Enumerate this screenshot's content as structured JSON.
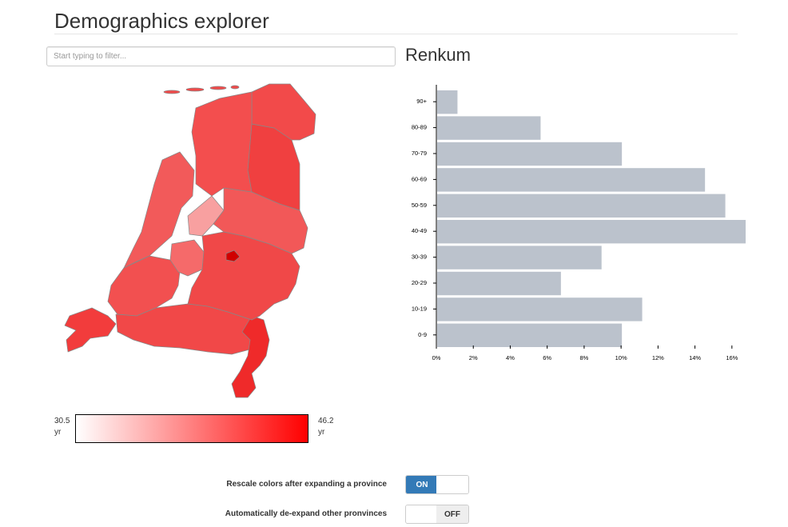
{
  "page": {
    "title": "Demographics explorer"
  },
  "filter": {
    "placeholder": "Start typing to filter..."
  },
  "selected_region": {
    "name": "Renkum"
  },
  "legend": {
    "min_value": "30.5",
    "max_value": "46.2",
    "unit": "yr",
    "low_color": "#ffffff",
    "high_color": "#ff0000"
  },
  "colors": {
    "bar_fill": "#bbc2cc",
    "toggle_on": "#337ab7",
    "map_border": "#888888"
  },
  "map_regions": [
    {
      "name": "Noord-Holland",
      "color": "#f25a5a"
    },
    {
      "name": "Zuid-Holland",
      "color": "#f25050"
    },
    {
      "name": "Zeeland",
      "color": "#f23c3c"
    },
    {
      "name": "Noord-Brabant",
      "color": "#f14848"
    },
    {
      "name": "Limburg",
      "color": "#ef2a2a"
    },
    {
      "name": "Utrecht",
      "color": "#f56a6a"
    },
    {
      "name": "Flevoland",
      "color": "#f8a0a0"
    },
    {
      "name": "Gelderland",
      "color": "#f04848"
    },
    {
      "name": "Overijssel",
      "color": "#f25858"
    },
    {
      "name": "Drenthe",
      "color": "#f04040"
    },
    {
      "name": "Groningen",
      "color": "#f24a4a"
    },
    {
      "name": "Friesland",
      "color": "#f34e4e"
    },
    {
      "name": "Renkum",
      "color": "#d00000"
    }
  ],
  "chart_data": {
    "type": "bar",
    "orientation": "horizontal",
    "categories": [
      "90+",
      "80-89",
      "70-79",
      "60-69",
      "50-59",
      "40-49",
      "30-39",
      "20-29",
      "10-19",
      "0-9"
    ],
    "values": [
      1.1,
      5.6,
      10.0,
      14.5,
      15.6,
      16.7,
      8.9,
      6.7,
      11.1,
      10.0
    ],
    "xlim": [
      0,
      16.7
    ],
    "xticks": [
      "0%",
      "2%",
      "4%",
      "6%",
      "8%",
      "10%",
      "12%",
      "14%",
      "16%"
    ],
    "xtick_values": [
      0,
      2,
      4,
      6,
      8,
      10,
      12,
      14,
      16
    ],
    "title": "",
    "xlabel": "",
    "ylabel": ""
  },
  "toggles": [
    {
      "label": "Rescale colors after expanding a province",
      "state": "ON",
      "on": true
    },
    {
      "label": "Automatically de-expand other pronvinces",
      "state": "OFF",
      "on": false
    }
  ]
}
